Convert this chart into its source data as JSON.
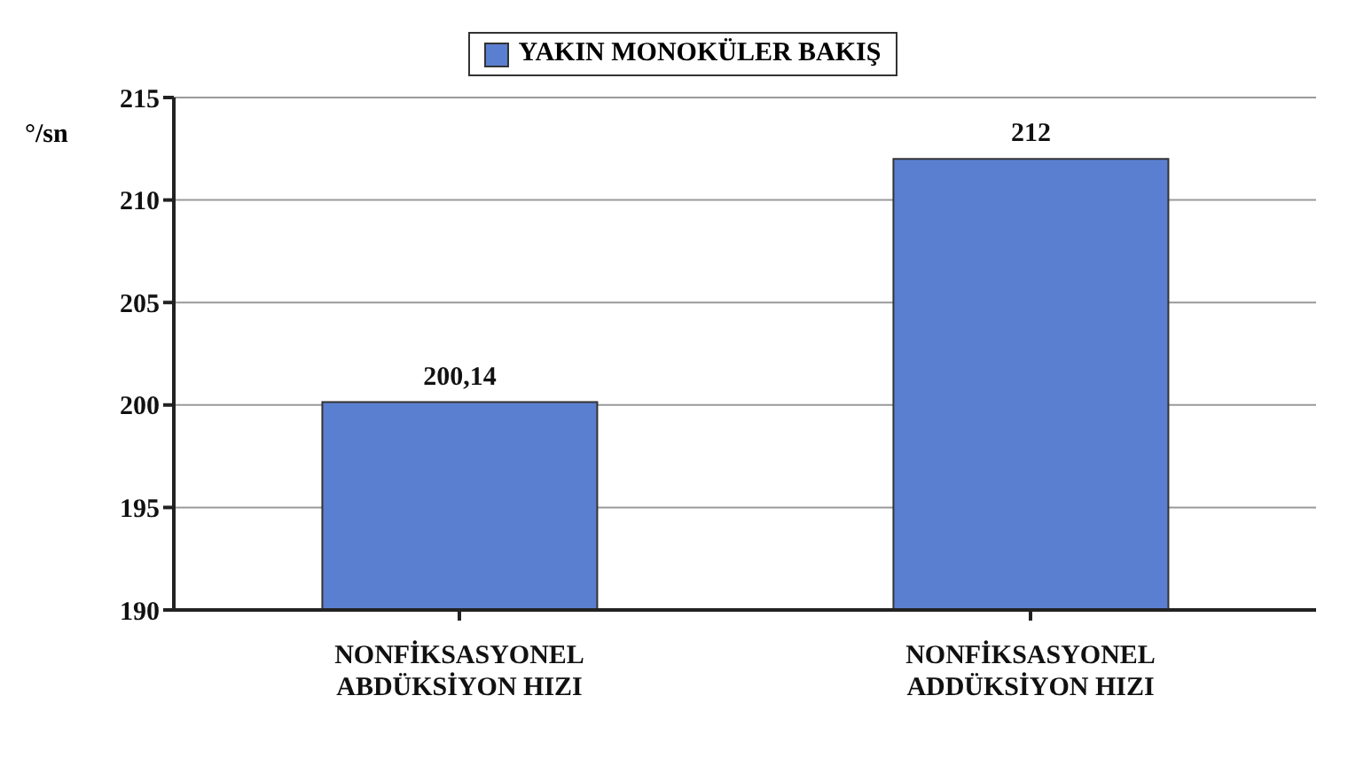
{
  "chart_data": {
    "type": "bar",
    "categories": [
      "NONFİKSASYONEL ABDÜKSİYON HIZI",
      "NONFİKSASYONEL ADDÜKSİYON HIZI"
    ],
    "series": [
      {
        "name": "YAKIN MONOKÜLER BAKIŞ",
        "color": "#5b7fd0",
        "values": [
          200.14,
          212
        ],
        "value_labels": [
          "200,14",
          "212"
        ]
      }
    ],
    "ylabel": "°/sn",
    "ylim": [
      190,
      215
    ],
    "yticks": [
      190,
      195,
      200,
      205,
      210,
      215
    ],
    "grid": "y",
    "legend": "top"
  }
}
